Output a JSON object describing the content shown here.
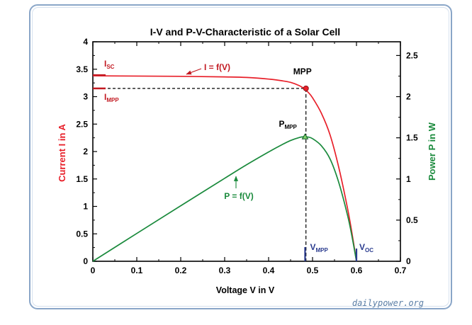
{
  "chart_data": {
    "type": "line",
    "title": "I-V and P-V-Characteristic of a Solar Cell",
    "xlabel": "Voltage V in V",
    "ylabel_left": "Current I in A",
    "ylabel_right": "Power P in W",
    "xlim": [
      0,
      0.7
    ],
    "ylim_left": [
      0,
      4
    ],
    "ylim_right": [
      0,
      2.6667
    ],
    "xticks": [
      "0",
      "0.1",
      "0.2",
      "0.3",
      "0.4",
      "0.5",
      "0.6",
      "0.7"
    ],
    "yticks_left": [
      "0",
      "0.5",
      "1",
      "1.5",
      "2",
      "2.5",
      "3",
      "3.5",
      "4"
    ],
    "yticks_right": [
      "0",
      "0.5",
      "1",
      "1.5",
      "2",
      "2.5"
    ],
    "colors": {
      "current": "#e8202a",
      "power": "#1a8a3c",
      "marker": "#2b3c8f"
    },
    "series": [
      {
        "name": "I = f(V)",
        "axis": "left",
        "x": [
          0,
          0.1,
          0.2,
          0.3,
          0.35,
          0.4,
          0.43,
          0.45,
          0.47,
          0.48,
          0.49,
          0.5,
          0.52,
          0.54,
          0.56,
          0.58,
          0.59,
          0.6
        ],
        "y": [
          3.38,
          3.375,
          3.37,
          3.36,
          3.35,
          3.32,
          3.29,
          3.26,
          3.2,
          3.15,
          3.08,
          2.98,
          2.7,
          2.3,
          1.7,
          0.95,
          0.5,
          0
        ]
      },
      {
        "name": "P = f(V)",
        "axis": "right",
        "x": [
          0,
          0.1,
          0.2,
          0.3,
          0.35,
          0.4,
          0.43,
          0.45,
          0.47,
          0.48,
          0.49,
          0.5,
          0.52,
          0.54,
          0.56,
          0.58,
          0.59,
          0.6
        ],
        "y": [
          0,
          0.338,
          0.674,
          1.008,
          1.173,
          1.328,
          1.415,
          1.467,
          1.504,
          1.512,
          1.509,
          1.49,
          1.404,
          1.242,
          0.952,
          0.551,
          0.295,
          0
        ]
      }
    ],
    "annotations": {
      "isc": {
        "main": "I",
        "sub": "SC",
        "value": 3.38
      },
      "impp": {
        "main": "I",
        "sub": "MPP",
        "value": 3.15
      },
      "mpp": {
        "label": "MPP",
        "x": 0.485,
        "y": 3.15
      },
      "pmpp": {
        "main": "P",
        "sub": "MPP",
        "x": 0.483,
        "y": 1.512
      },
      "vmpp": {
        "main": "V",
        "sub": "MPP",
        "value": 0.483
      },
      "voc": {
        "main": "V",
        "sub": "OC",
        "value": 0.6
      },
      "iv_label": "I = f(V)",
      "pv_label": "P = f(V)"
    }
  },
  "watermark": "dailypower.org"
}
